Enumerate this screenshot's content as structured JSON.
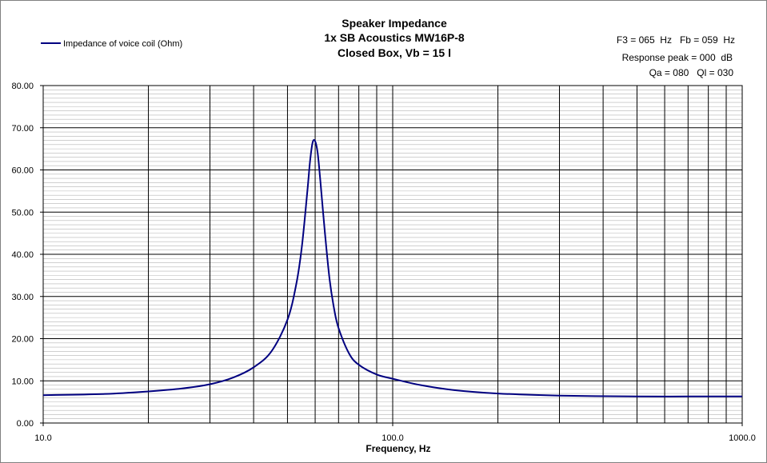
{
  "chart_data": {
    "type": "line",
    "title_lines": [
      "Speaker Impedance",
      "1x SB Acoustics MW16P-8",
      "Closed Box, Vb = 15 l"
    ],
    "info_lines": [
      "F3 = 065  Hz   Fb = 059  Hz",
      "Response peak = 000  dB",
      "Qa = 080   Ql = 030"
    ],
    "xlabel": "Frequency, Hz",
    "ylabel": "",
    "x_scale": "log",
    "xlim": [
      10,
      1000
    ],
    "ylim": [
      0,
      80
    ],
    "x_tick_labels": [
      "10.0",
      "100.0",
      "1000.0"
    ],
    "y_tick_labels": [
      "0.00",
      "10.00",
      "20.00",
      "30.00",
      "40.00",
      "50.00",
      "60.00",
      "70.00",
      "80.00"
    ],
    "grid": true,
    "legend_position": "top-left",
    "series": [
      {
        "name": "Impedance of voice coil (Ohm)",
        "color": "#000080",
        "x": [
          10,
          15,
          20,
          25,
          30,
          35,
          40,
          45,
          50,
          53,
          55,
          57,
          58,
          59,
          60,
          61,
          62,
          64,
          66,
          68,
          70,
          75,
          80,
          90,
          100,
          120,
          150,
          200,
          300,
          500,
          700,
          1000
        ],
        "y": [
          6.6,
          6.9,
          7.5,
          8.2,
          9.2,
          10.8,
          13.2,
          17.0,
          24.5,
          33.0,
          42.0,
          55.0,
          62.0,
          66.5,
          66.8,
          64.0,
          58.0,
          45.0,
          34.0,
          27.0,
          22.5,
          16.5,
          13.8,
          11.5,
          10.5,
          9.0,
          7.8,
          7.0,
          6.5,
          6.3,
          6.3,
          6.3
        ]
      }
    ]
  }
}
